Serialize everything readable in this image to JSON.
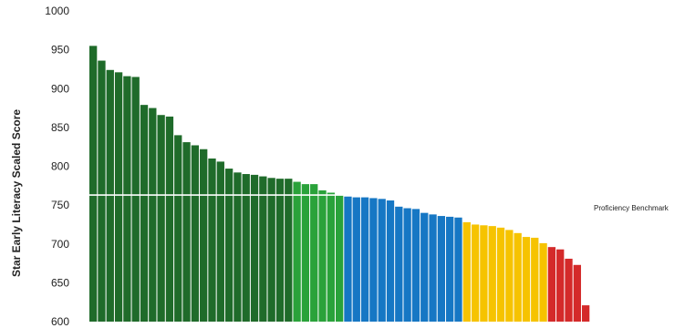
{
  "chart_data": {
    "type": "bar",
    "ylabel": "Star Early Literacy Scaled Score",
    "xlabel": "",
    "ylim": [
      600,
      1000
    ],
    "yticks": [
      "1000",
      "950",
      "900",
      "850",
      "800",
      "750",
      "700",
      "650",
      "600"
    ],
    "grid": false,
    "benchmark": {
      "label": "Proficiency Benchmark",
      "value": 763
    },
    "colors": {
      "dark_green": "#1f6b2a",
      "green": "#2aa23a",
      "blue": "#1677c4",
      "yellow": "#f6c300",
      "red": "#d42a2a",
      "benchmark_line": "#ffffff"
    },
    "series": [
      {
        "color_key": "dark_green",
        "values": [
          955,
          936,
          924,
          921,
          916,
          915,
          879,
          875,
          866,
          864,
          840,
          831,
          827,
          822,
          810,
          806,
          797,
          792,
          790,
          789,
          787,
          785,
          784,
          784
        ]
      },
      {
        "color_key": "green",
        "values": [
          780,
          777,
          777,
          769,
          766,
          763
        ]
      },
      {
        "color_key": "blue",
        "values": [
          761,
          760,
          760,
          759,
          758,
          756,
          748,
          746,
          745,
          740,
          738,
          736,
          735,
          734
        ]
      },
      {
        "color_key": "yellow",
        "values": [
          728,
          725,
          724,
          723,
          721,
          718,
          714,
          709,
          708,
          701
        ]
      },
      {
        "color_key": "red",
        "values": [
          696,
          693,
          681,
          673,
          621
        ]
      }
    ]
  }
}
